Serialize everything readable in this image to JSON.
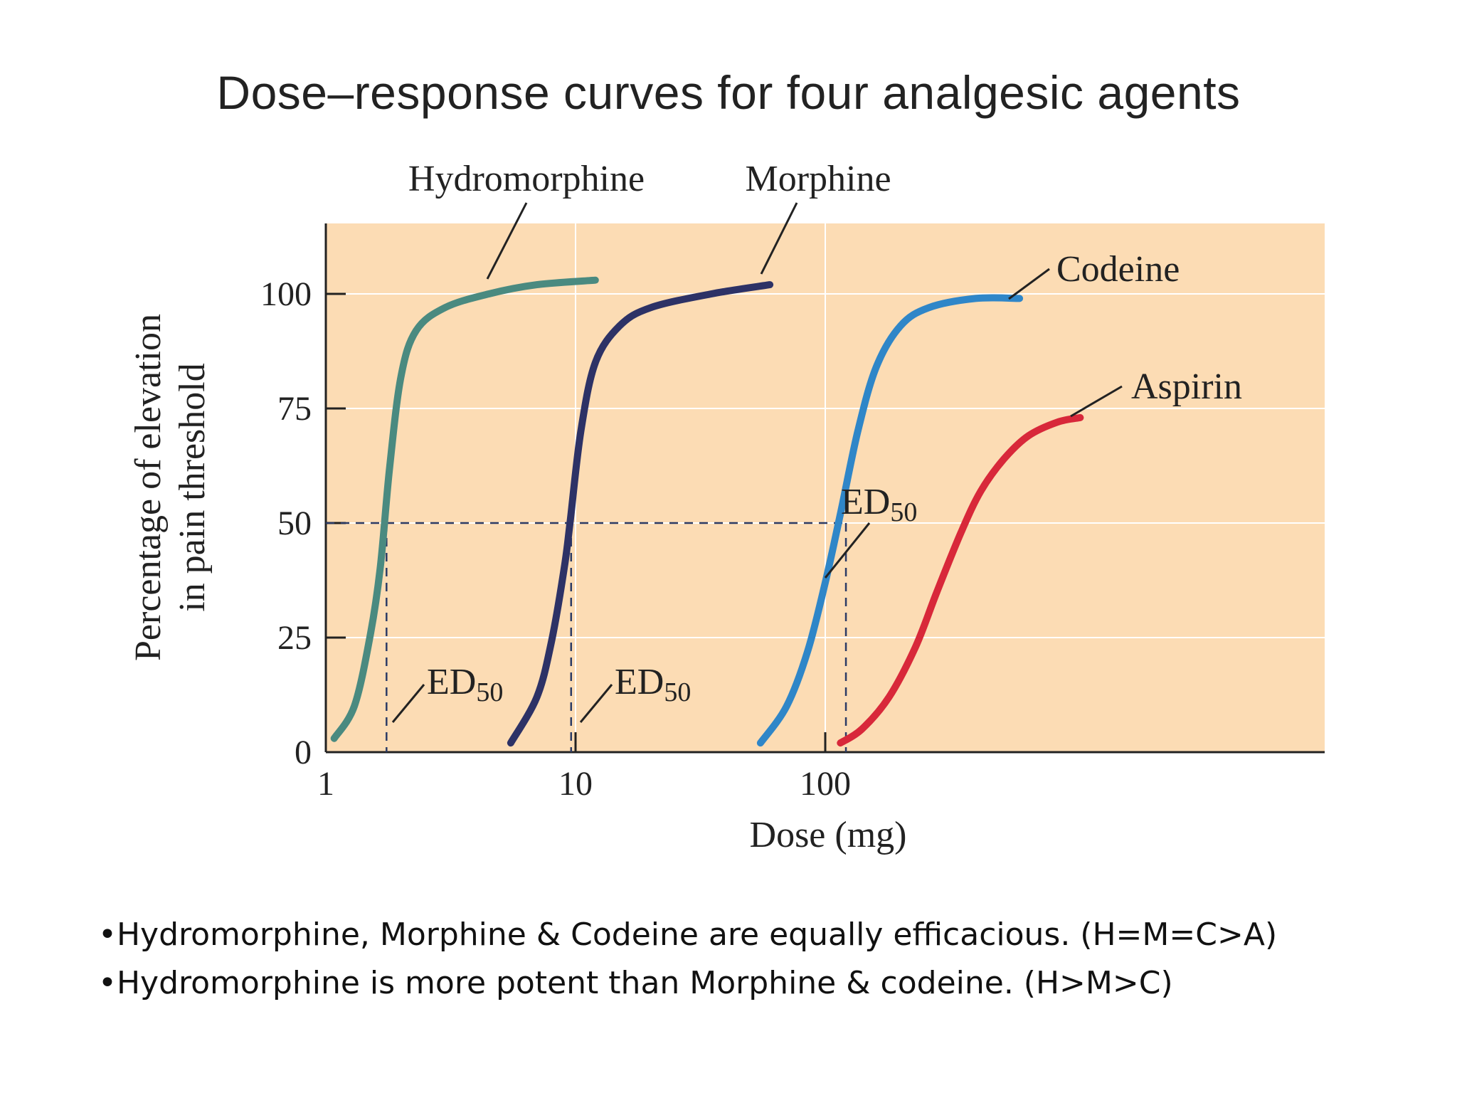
{
  "title": "Dose–response curves for four analgesic agents",
  "chart_data": {
    "type": "line",
    "x_scale": "log",
    "xlabel": "Dose (mg)",
    "ylabel_lines": [
      "Percentage of elevation",
      "in pain threshold"
    ],
    "x_ticks": [
      1,
      10,
      100
    ],
    "x_tick_labels": [
      "1",
      "10",
      "100"
    ],
    "y_ticks": [
      0,
      25,
      50,
      75,
      100
    ],
    "y_tick_labels": [
      "0",
      "25",
      "50",
      "75",
      "100"
    ],
    "xlim": [
      1,
      1200
    ],
    "ylim": [
      0,
      115
    ],
    "grid": true,
    "plot_background": "#fcdcb4",
    "ed50_label": "ED",
    "ed50_subscript": "50",
    "series": [
      {
        "name": "Hydromorphine",
        "color": "#4a8a80",
        "x": [
          1.08,
          1.3,
          1.5,
          1.65,
          1.8,
          2.0,
          2.3,
          3.0,
          4.5,
          7.0,
          12.0
        ],
        "y": [
          3,
          10,
          25,
          40,
          62,
          82,
          92,
          97,
          100,
          102,
          103
        ],
        "ed50": 1.75
      },
      {
        "name": "Morphine",
        "color": "#2d3266",
        "x": [
          5.5,
          7.0,
          8.0,
          9.0,
          9.5,
          10.5,
          12.0,
          15.0,
          20.0,
          35.0,
          60.0
        ],
        "y": [
          2,
          12,
          24,
          40,
          50,
          70,
          85,
          93,
          97,
          100,
          102
        ],
        "ed50": 9.6
      },
      {
        "name": "Codeine",
        "color": "#2f86c8",
        "x": [
          55,
          70,
          85,
          100,
          115,
          135,
          160,
          200,
          260,
          400,
          600
        ],
        "y": [
          2,
          10,
          22,
          37,
          52,
          70,
          84,
          93,
          97,
          99,
          99
        ],
        "ed50": 121
      },
      {
        "name": "Aspirin",
        "color": "#d8283a",
        "x": [
          115,
          140,
          180,
          230,
          280,
          350,
          420,
          520,
          650,
          850,
          1050
        ],
        "y": [
          2,
          5,
          12,
          23,
          35,
          48,
          57,
          64,
          69,
          72,
          73
        ]
      }
    ]
  },
  "bullets": [
    "•Hydromorphine, Morphine & Codeine are equally efficacious. (H=M=C>A)",
    "•Hydromorphine is more potent than Morphine & codeine. (H>M>C)"
  ]
}
